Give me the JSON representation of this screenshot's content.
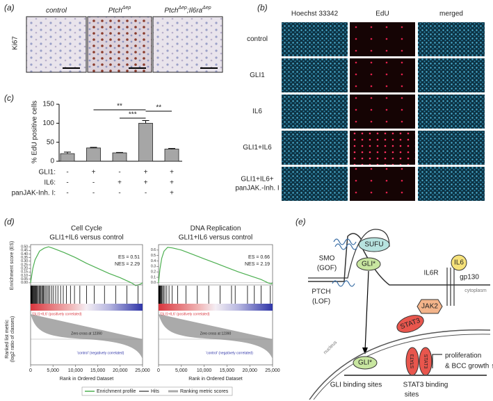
{
  "panels": {
    "a": {
      "label": "(a)",
      "row_label": "Ki67",
      "columns": [
        [
          "control"
        ],
        [
          "Ptch",
          "Δep"
        ],
        [
          "Ptch",
          "Δep",
          ";Il6ra",
          "Δep"
        ]
      ]
    },
    "b": {
      "label": "(b)",
      "columns": [
        "Hoechst 33342",
        "EdU",
        "merged"
      ],
      "rows": [
        [
          "control"
        ],
        [
          "GLI1"
        ],
        [
          "IL6"
        ],
        [
          "GLI1+IL6"
        ],
        [
          "GLI1+IL6+",
          "panJAK.-Inh. I"
        ]
      ]
    },
    "c": {
      "label": "(c)"
    },
    "d": {
      "label": "(d)",
      "legend": [
        "Enrichment profile",
        "Hits",
        "Ranking metric scores"
      ],
      "x_label": "Rank in Ordered Dataset",
      "y_label": "Enrichment score (ES)",
      "y2_label": [
        "Ranked list metric",
        "(log2 ratio of classes)"
      ],
      "pos_label": "'GLI1+IL6' (positively correlated)",
      "neg_label": "'control' (negatively correlated)",
      "zero_cross": "Zero cross at 12390"
    },
    "e": {
      "label": "(e)",
      "smo": "SMO",
      "gof": "(GOF)",
      "sufu": "SUFU",
      "gli": "GLI*",
      "ptch": "PTCH",
      "lof": "(LOF)",
      "il6r": "IL6R",
      "il6": "IL6",
      "gp130": "gp130",
      "cytoplasm": "cytoplasm",
      "jak2": "JAK2",
      "stat3": "STAT3",
      "nucleus": "nucleus",
      "proliferation": [
        "proliferation",
        "& BCC growth ↑↑"
      ],
      "gli_sites": "GLI binding sites",
      "stat3_sites": [
        "STAT3 binding",
        "sites"
      ]
    }
  },
  "chart_data": [
    {
      "type": "bar",
      "ylabel": "% EdU positive cells",
      "values": [
        20,
        35,
        22,
        100,
        32
      ],
      "errors": [
        4,
        1.5,
        1,
        7,
        1.5
      ],
      "color": "#a6a6a6",
      "ylim": [
        0,
        150
      ],
      "yticks": [
        0,
        50,
        100,
        150
      ],
      "annotations": [
        "**",
        "***",
        "**"
      ],
      "conditions": [
        {
          "name": "GLI1:",
          "signs": [
            "-",
            "+",
            "-",
            "+",
            "+"
          ]
        },
        {
          "name": "IL6:",
          "signs": [
            "-",
            "-",
            "+",
            "+",
            "+"
          ]
        },
        {
          "name": "panJAK-Inh. I:",
          "signs": [
            "-",
            "-",
            "-",
            "-",
            "+"
          ]
        }
      ]
    },
    {
      "type": "line",
      "title": "Cell Cycle",
      "subtitle": "GLI1+IL6 versus control",
      "color": "#4caf50",
      "x": [
        0,
        500,
        1000,
        2000,
        3000,
        4000,
        5000,
        7500,
        10000,
        12500,
        15000,
        17500,
        20000,
        22500,
        23500,
        24500,
        25000
      ],
      "values": [
        0,
        0.2,
        0.32,
        0.44,
        0.48,
        0.5,
        0.48,
        0.42,
        0.35,
        0.27,
        0.2,
        0.13,
        0.07,
        0.0,
        -0.04,
        -0.02,
        0
      ],
      "xlim": [
        0,
        25000
      ],
      "ylim": [
        -0.03,
        0.53
      ],
      "xticks": [
        0,
        {
          "value": 5000,
          "label": "5,000"
        },
        {
          "value": 10000,
          "label": "10,000"
        },
        {
          "value": 15000,
          "label": "15,000"
        },
        {
          "value": 20000,
          "label": "20,000"
        },
        {
          "value": 25000,
          "label": "25,000"
        }
      ],
      "yticks": [
        {
          "value": 0,
          "label": "0.00"
        },
        {
          "value": 0.05,
          "label": "0.05"
        },
        {
          "value": 0.1,
          "label": "0.10"
        },
        {
          "value": 0.15,
          "label": "0.15"
        },
        {
          "value": 0.2,
          "label": "0.20"
        },
        {
          "value": 0.25,
          "label": "0.25"
        },
        {
          "value": 0.3,
          "label": "0.30"
        },
        {
          "value": 0.35,
          "label": "0.35"
        },
        {
          "value": 0.4,
          "label": "0.40"
        },
        {
          "value": 0.45,
          "label": "0.45"
        },
        {
          "value": 0.5,
          "label": "0.50"
        }
      ],
      "stats": [
        "ES = 0.51",
        "NES = 2.29"
      ],
      "hits": [
        50,
        120,
        200,
        300,
        420,
        550,
        700,
        850,
        1000,
        1150,
        1300,
        1500,
        1700,
        1900,
        2100,
        2300,
        2500,
        2700,
        2900,
        3100,
        3400,
        3700,
        4000,
        4300,
        4700,
        5100,
        5600,
        6100,
        6700,
        7300,
        8000,
        8900,
        9800,
        11000,
        12500,
        14200,
        16500,
        19000,
        21500,
        24000
      ]
    },
    {
      "type": "line",
      "title": "DNA Replication",
      "subtitle": "GLI1+IL6 versus control",
      "color": "#4caf50",
      "x": [
        0,
        300,
        700,
        1200,
        2000,
        3000,
        5000,
        7500,
        10000,
        12500,
        15000,
        17500,
        20000,
        22500,
        24000,
        24700,
        25000
      ],
      "values": [
        0,
        0.25,
        0.45,
        0.58,
        0.65,
        0.64,
        0.6,
        0.52,
        0.44,
        0.36,
        0.28,
        0.2,
        0.13,
        0.06,
        0.0,
        -0.02,
        0
      ],
      "xlim": [
        0,
        25000
      ],
      "ylim": [
        -0.04,
        0.7
      ],
      "xticks": [
        0,
        {
          "value": 5000,
          "label": "5,000"
        },
        {
          "value": 10000,
          "label": "10,000"
        },
        {
          "value": 15000,
          "label": "15,000"
        },
        {
          "value": 20000,
          "label": "20,000"
        },
        {
          "value": 25000,
          "label": "25,000"
        }
      ],
      "yticks": [
        {
          "value": 0,
          "label": "0.0"
        },
        0.1,
        0.2,
        0.3,
        0.4,
        0.5,
        0.6
      ],
      "stats": [
        "ES = 0.66",
        "NES = 2.19"
      ],
      "hits": [
        40,
        100,
        180,
        280,
        400,
        550,
        700,
        900,
        1100,
        1400,
        1800,
        2300,
        3000,
        4200,
        6000,
        8500,
        11000,
        13500,
        16000,
        16800,
        19500,
        21000,
        22500,
        24500
      ]
    }
  ]
}
